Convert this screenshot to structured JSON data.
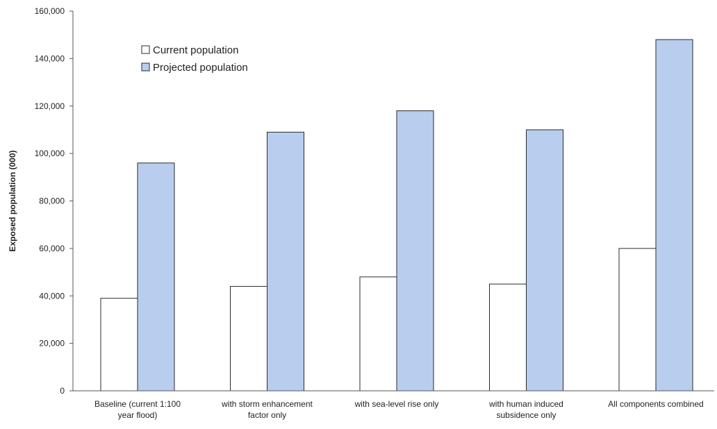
{
  "chart_data": {
    "type": "bar",
    "title": "",
    "xlabel": "",
    "ylabel": "Exposed population (000)",
    "ylim": [
      0,
      160000
    ],
    "yticks": [
      "0",
      "20,000",
      "40,000",
      "60,000",
      "80,000",
      "100,000",
      "120,000",
      "140,000",
      "160,000"
    ],
    "ytick_values": [
      0,
      20000,
      40000,
      60000,
      80000,
      100000,
      120000,
      140000,
      160000
    ],
    "grid": false,
    "legend_position": "top-left",
    "categories": [
      [
        "Baseline (current 1:100",
        "year flood)"
      ],
      [
        "with storm enhancement",
        "factor only"
      ],
      [
        "with sea-level rise only"
      ],
      [
        "with human induced",
        "subsidence only"
      ],
      [
        "All components combined"
      ]
    ],
    "series": [
      {
        "name": "Current population",
        "color": "#ffffff",
        "values": [
          39000,
          44000,
          48000,
          45000,
          60000
        ]
      },
      {
        "name": "Projected population",
        "color": "#b9cdee",
        "values": [
          96000,
          109000,
          118000,
          110000,
          148000
        ]
      }
    ]
  }
}
